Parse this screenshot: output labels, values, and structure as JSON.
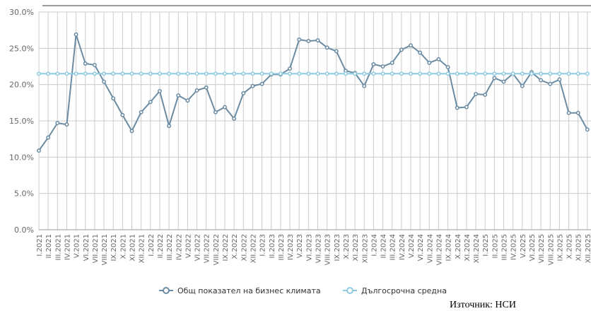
{
  "chart_data": {
    "type": "line",
    "categories": [
      "I.2021",
      "II.2021",
      "III.2021",
      "IV.2021",
      "V.2021",
      "VI.2021",
      "VII.2021",
      "VIII.2021",
      "IX.2021",
      "X.2021",
      "XI.2021",
      "XII.2021",
      "I.2022",
      "II.2022",
      "III.2022",
      "IV.2022",
      "V.2022",
      "VI.2022",
      "VII.2022",
      "VIII.2022",
      "IX.2022",
      "X.2022",
      "XI.2022",
      "XII.2022",
      "I.2023",
      "II.2023",
      "III.2023",
      "IV.2023",
      "V.2023",
      "VI.2023",
      "VII.2023",
      "VIII.2023",
      "IX.2023",
      "X.2023",
      "XI.2023",
      "XII.2023",
      "I.2024",
      "II.2024",
      "III.2024",
      "IV.2024",
      "V.2024",
      "VI.2024",
      "VII.2024",
      "VIII.2024",
      "IX.2024",
      "X.2024",
      "XI.2024",
      "XII.2024",
      "I.2025",
      "II.2025",
      "III.2025",
      "IV.2025",
      "V.2025",
      "VI.2025",
      "VII.2025",
      "VIII.2025",
      "IX.2025",
      "X.2025",
      "XI.2025",
      "XII.2025"
    ],
    "series": [
      {
        "name": "Общ показател на бизнес климата",
        "color": "#6b8ba3",
        "values": [
          10.9,
          12.7,
          14.7,
          14.5,
          26.9,
          22.9,
          22.7,
          20.4,
          18.1,
          15.8,
          13.6,
          16.2,
          17.6,
          19.1,
          14.3,
          18.5,
          17.8,
          19.2,
          19.6,
          16.2,
          16.9,
          15.3,
          18.8,
          19.8,
          20.1,
          21.4,
          21.4,
          22.2,
          26.2,
          26.0,
          26.1,
          25.1,
          24.6,
          21.9,
          21.6,
          19.8,
          22.8,
          22.5,
          23.0,
          24.8,
          25.4,
          24.4,
          23.0,
          23.5,
          22.4,
          16.8,
          16.9,
          18.7,
          18.6,
          20.9,
          20.4,
          21.5,
          19.8,
          21.7,
          20.6,
          20.1,
          20.7,
          16.1,
          16.1,
          13.8
        ]
      },
      {
        "name": "Дългосрочна средна",
        "color": "#8ecbe3",
        "values": [
          21.5,
          21.5,
          21.5,
          21.5,
          21.5,
          21.5,
          21.5,
          21.5,
          21.5,
          21.5,
          21.5,
          21.5,
          21.5,
          21.5,
          21.5,
          21.5,
          21.5,
          21.5,
          21.5,
          21.5,
          21.5,
          21.5,
          21.5,
          21.5,
          21.5,
          21.5,
          21.5,
          21.5,
          21.5,
          21.5,
          21.5,
          21.5,
          21.5,
          21.5,
          21.5,
          21.5,
          21.5,
          21.5,
          21.5,
          21.5,
          21.5,
          21.5,
          21.5,
          21.5,
          21.5,
          21.5,
          21.5,
          21.5,
          21.5,
          21.5,
          21.5,
          21.5,
          21.5,
          21.5,
          21.5,
          21.5,
          21.5,
          21.5,
          21.5,
          21.5
        ]
      }
    ],
    "ylim": [
      0,
      30
    ],
    "yticks": [
      {
        "value": 0,
        "label": "0.0%"
      },
      {
        "value": 5,
        "label": "5.0%"
      },
      {
        "value": 10,
        "label": "10.0%"
      },
      {
        "value": 15,
        "label": "15.0%"
      },
      {
        "value": 20,
        "label": "20.0%"
      },
      {
        "value": 25,
        "label": "25.0%"
      },
      {
        "value": 30,
        "label": "30.0%"
      }
    ],
    "grid": true,
    "legend": "bottom",
    "source": "Източник: НСИ"
  }
}
